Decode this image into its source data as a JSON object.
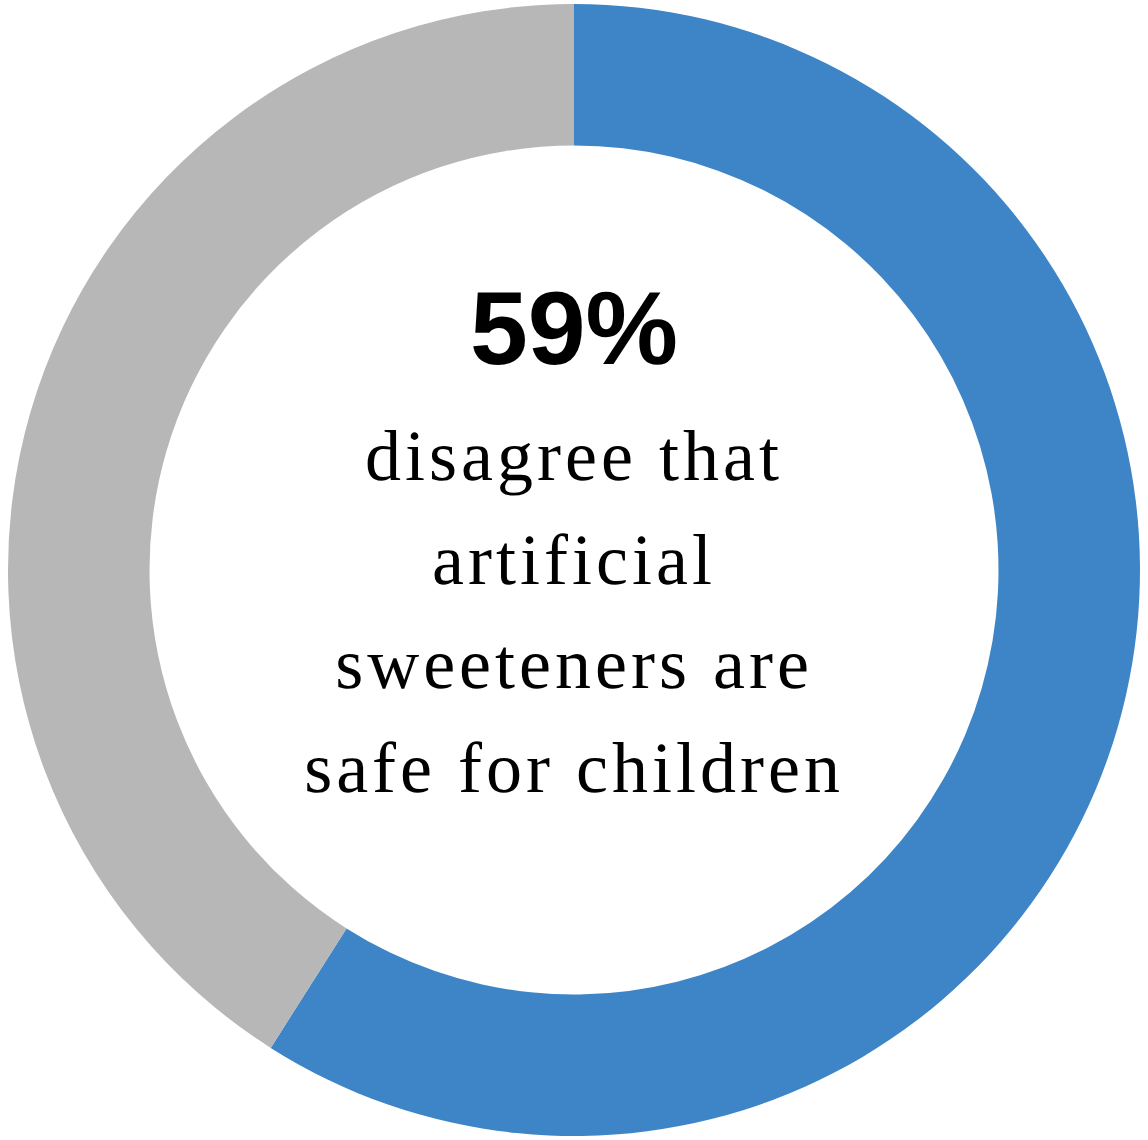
{
  "chart_data": {
    "type": "donut",
    "categories": [
      null,
      null
    ],
    "values": [
      59,
      41
    ],
    "colors": [
      "#3d85c6",
      "#b7b7b7"
    ],
    "legend": false,
    "annotations": [
      "59%",
      "disagree that artificial sweeteners are safe for children"
    ]
  }
}
